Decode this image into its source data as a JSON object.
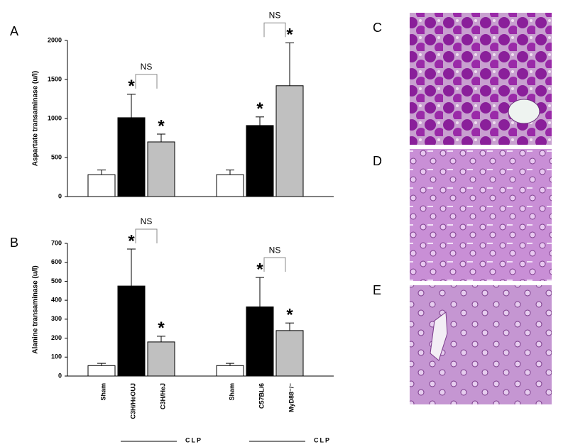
{
  "chart_data": [
    {
      "type": "bar",
      "panel_label": "A",
      "ylabel": "Aspartate transaminase (u/l)",
      "categories": [
        null,
        null,
        null,
        null,
        null,
        null
      ],
      "values": [
        280,
        1010,
        700,
        280,
        910,
        1420
      ],
      "errors": [
        60,
        300,
        100,
        60,
        110,
        550
      ],
      "colors": [
        "#ffffff",
        "#000000",
        "#c0c0c0",
        "#ffffff",
        "#000000",
        "#c0c0c0"
      ],
      "stars": [
        null,
        "*",
        "*",
        null,
        "*",
        "*"
      ],
      "brackets": [
        "NS",
        "NS"
      ],
      "ylim": [
        0,
        2000
      ],
      "yticks": [
        0,
        500,
        1000,
        1500,
        2000
      ]
    },
    {
      "type": "bar",
      "panel_label": "B",
      "ylabel": "Alanine transaminase (u/l)",
      "categories": [
        "Sham",
        "C3H/HeOUJ",
        "C3H/HeJ",
        "Sham",
        "C57BL/6",
        "MyD88⁻/⁻"
      ],
      "values": [
        55,
        475,
        180,
        55,
        365,
        240
      ],
      "errors": [
        12,
        195,
        30,
        12,
        155,
        40
      ],
      "colors": [
        "#ffffff",
        "#000000",
        "#c0c0c0",
        "#ffffff",
        "#000000",
        "#c0c0c0"
      ],
      "stars": [
        null,
        "*",
        "*",
        null,
        "*",
        "*"
      ],
      "brackets": [
        "NS",
        "NS"
      ],
      "group_labels": [
        "CLP",
        "CLP"
      ],
      "ylim": [
        0,
        700
      ],
      "yticks": [
        0,
        100,
        200,
        300,
        400,
        500,
        600,
        700
      ]
    }
  ],
  "image_panels": [
    "C",
    "D",
    "E"
  ]
}
